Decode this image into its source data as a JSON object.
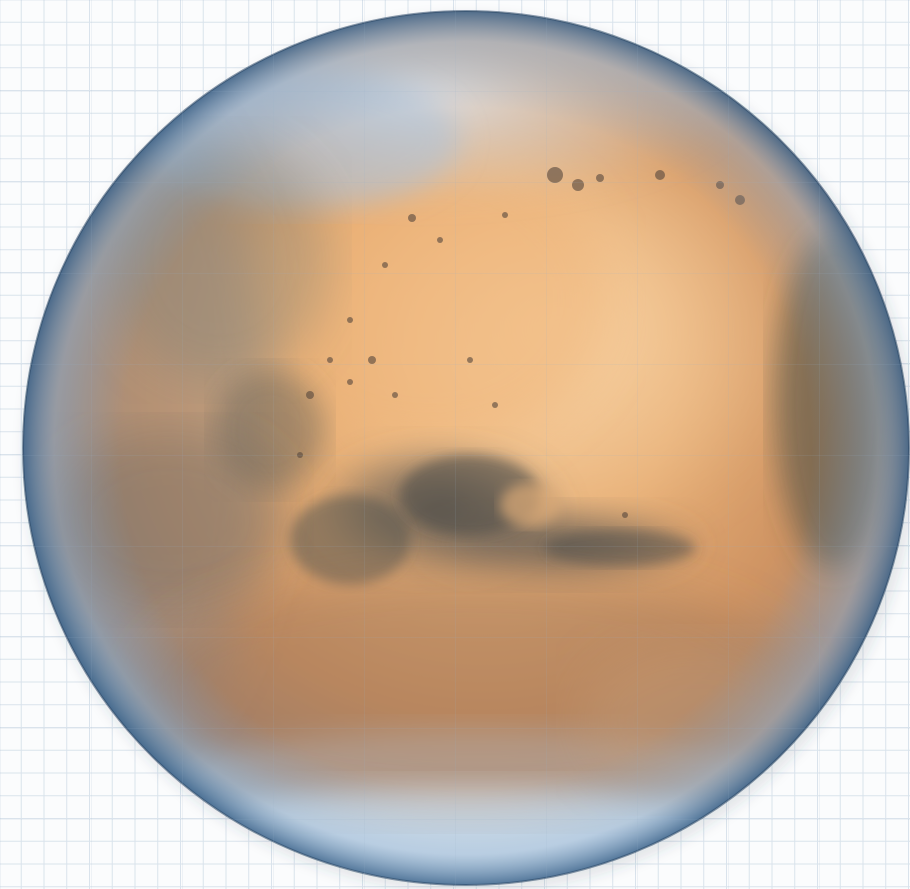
{
  "scene": {
    "subject": "mars-planet",
    "background": "grid-paper",
    "colors": {
      "paper": "#fbfcfd",
      "grid_line": "#d9e3ec",
      "surface_light": "#e9b27c",
      "surface_mid": "#d79a64",
      "surface_dark": "#8f7362",
      "albedo_dark": "#5f5d58",
      "polar_cap": "#eef2f5",
      "limb_haze": "#8fb1d2"
    }
  }
}
